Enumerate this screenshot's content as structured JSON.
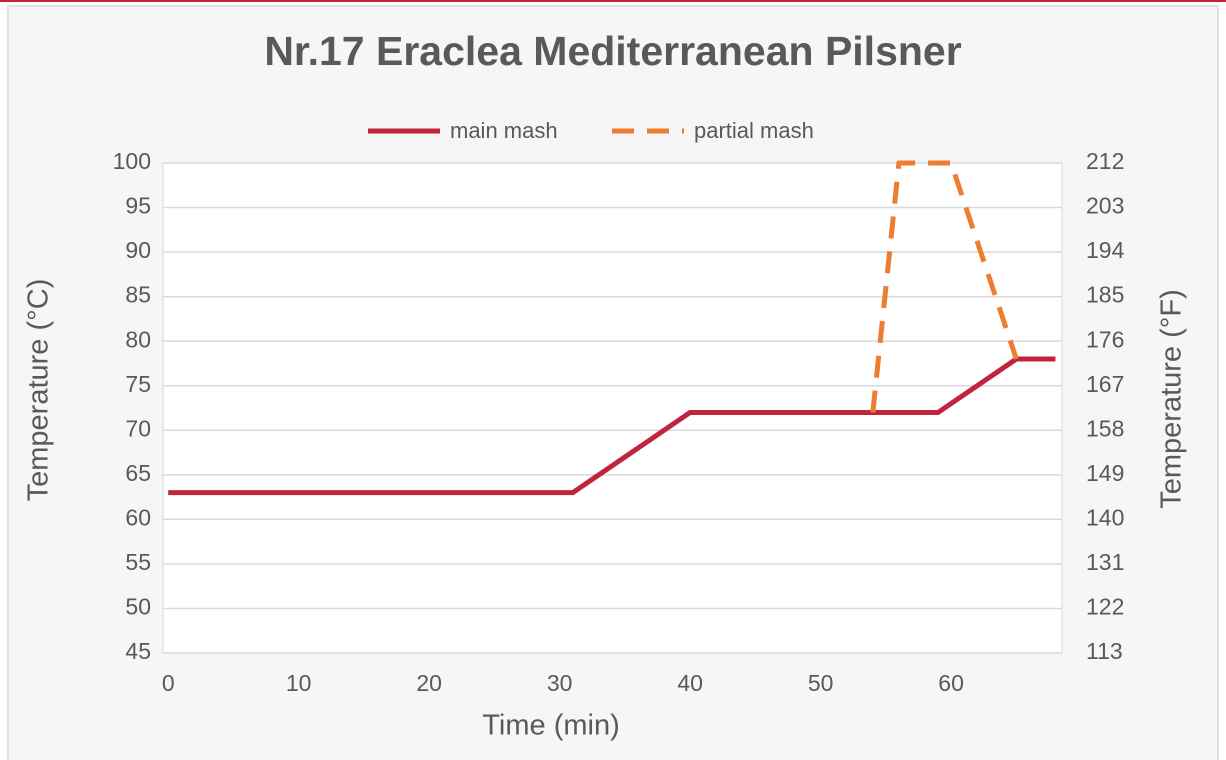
{
  "chart_data": {
    "type": "line",
    "title": "Nr.17 Eraclea Mediterranean Pilsner",
    "x_label": "Time (min)",
    "y_label": "Temperature (°C)",
    "y2_label": "Temperature (°F)",
    "xlim": [
      -0.4,
      68.5
    ],
    "xticks": [
      0,
      10,
      20,
      30,
      40,
      50,
      60
    ],
    "ylim": [
      45,
      100
    ],
    "yticks": [
      45,
      50,
      55,
      60,
      65,
      70,
      75,
      80,
      85,
      90,
      95,
      100
    ],
    "y2lim": [
      113,
      212
    ],
    "y2ticks": [
      113,
      122,
      131,
      140,
      149,
      158,
      167,
      176,
      185,
      194,
      203,
      212
    ],
    "grid": true,
    "legend": "top",
    "series": [
      {
        "name": "main mash",
        "color": "#c0243f",
        "style": "solid",
        "x": [
          0,
          31,
          40,
          59,
          65,
          68
        ],
        "values": [
          63,
          63,
          72,
          72,
          78,
          78
        ]
      },
      {
        "name": "partial mash",
        "color": "#ed7d31",
        "style": "dashed",
        "x": [
          54,
          56,
          60,
          65
        ],
        "values": [
          72,
          100,
          100,
          78
        ]
      }
    ]
  }
}
